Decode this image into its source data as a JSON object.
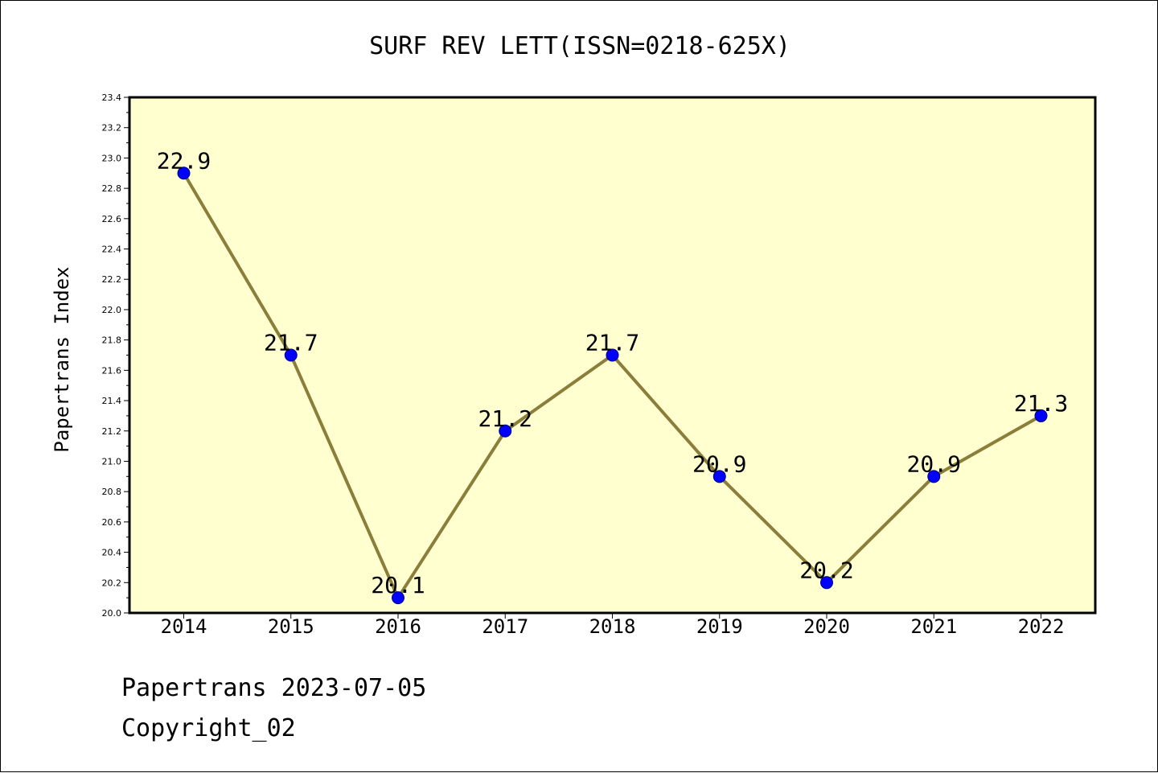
{
  "footer": {
    "line1": "Papertrans 2023-07-05",
    "line2": "Copyright_02"
  },
  "chart_data": {
    "type": "line",
    "title": "SURF REV LETT(ISSN=0218-625X)",
    "xlabel": "",
    "ylabel": "Papertrans Index",
    "categories": [
      "2014",
      "2015",
      "2016",
      "2017",
      "2018",
      "2019",
      "2020",
      "2021",
      "2022"
    ],
    "series": [
      {
        "values": [
          22.9,
          21.7,
          20.1,
          21.2,
          21.7,
          20.9,
          20.2,
          20.9,
          21.3
        ],
        "data_labels": [
          "22.9",
          "21.7",
          "20.1",
          "21.2",
          "21.7",
          "20.9",
          "20.2",
          "20.9",
          "21.3"
        ]
      }
    ],
    "ylim": [
      20.0,
      23.4
    ],
    "yticks": [
      "20.0",
      "20.2",
      "20.4",
      "20.6",
      "20.8",
      "21.0",
      "21.2",
      "21.4",
      "21.6",
      "21.8",
      "22.0",
      "22.2",
      "22.4",
      "22.6",
      "22.8",
      "23.0",
      "23.2",
      "23.4"
    ],
    "grid": false,
    "legend": "none",
    "colors": {
      "plot_background": "#ffffd0",
      "line": "#8b7d3a",
      "marker": "#0000ff",
      "marker_edge": "#000080"
    }
  }
}
